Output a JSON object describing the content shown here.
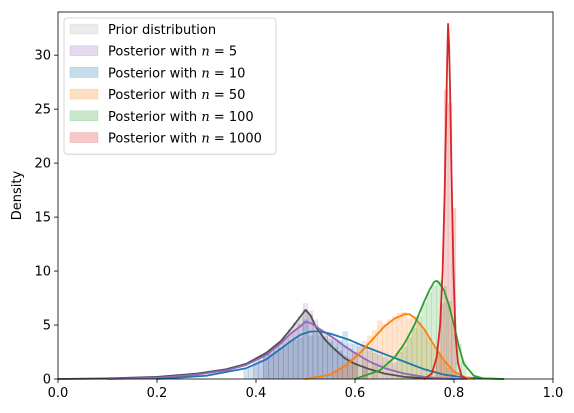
{
  "chart_data": {
    "type": "area",
    "title": "",
    "xlabel": "",
    "ylabel": "Density",
    "xlim": [
      0.0,
      1.0
    ],
    "ylim": [
      0,
      34
    ],
    "xticks": [
      0.0,
      0.2,
      0.4,
      0.6,
      0.8,
      1.0
    ],
    "xtick_labels": [
      "0.0",
      "0.2",
      "0.4",
      "0.6",
      "0.8",
      "1.0"
    ],
    "yticks": [
      0,
      5,
      10,
      15,
      20,
      25,
      30
    ],
    "ytick_labels": [
      "0",
      "5",
      "10",
      "15",
      "20",
      "25",
      "30"
    ],
    "grid": false,
    "legend_position": "top-left",
    "series": [
      {
        "name": "Prior distribution",
        "color": "#505050",
        "x": [
          0.0,
          0.1,
          0.2,
          0.28,
          0.34,
          0.38,
          0.42,
          0.45,
          0.47,
          0.49,
          0.5,
          0.51,
          0.52,
          0.54,
          0.56,
          0.58,
          0.6,
          0.63,
          0.66,
          0.7,
          0.75,
          0.8
        ],
        "values": [
          0.0,
          0.05,
          0.2,
          0.5,
          0.9,
          1.4,
          2.4,
          3.5,
          4.6,
          5.8,
          6.4,
          5.9,
          4.9,
          3.6,
          2.7,
          1.9,
          1.4,
          0.9,
          0.5,
          0.2,
          0.05,
          0.0
        ],
        "hist_x": [
          0.42,
          0.43,
          0.44,
          0.45,
          0.46,
          0.47,
          0.48,
          0.49,
          0.5,
          0.51,
          0.52,
          0.53,
          0.54,
          0.55,
          0.56,
          0.57,
          0.58,
          0.59,
          0.6,
          0.62
        ],
        "hist_values": [
          2.2,
          2.5,
          3.0,
          3.5,
          4.0,
          4.6,
          5.2,
          5.8,
          6.4,
          5.9,
          5.0,
          4.5,
          4.0,
          3.4,
          2.9,
          2.6,
          2.1,
          1.8,
          1.5,
          1.1
        ]
      },
      {
        "name": "Posterior with $n=5$",
        "color": "#9467bd",
        "x": [
          0.1,
          0.2,
          0.28,
          0.34,
          0.38,
          0.42,
          0.45,
          0.47,
          0.49,
          0.5,
          0.51,
          0.52,
          0.54,
          0.56,
          0.58,
          0.6,
          0.63,
          0.66,
          0.7,
          0.74,
          0.78,
          0.82
        ],
        "values": [
          0.0,
          0.1,
          0.4,
          0.8,
          1.3,
          2.2,
          3.3,
          4.2,
          4.9,
          5.3,
          5.2,
          4.9,
          4.3,
          3.7,
          3.0,
          2.4,
          1.6,
          1.0,
          0.5,
          0.2,
          0.05,
          0.0
        ],
        "hist_x": [
          0.4,
          0.41,
          0.42,
          0.43,
          0.44,
          0.45,
          0.46,
          0.47,
          0.48,
          0.49,
          0.5,
          0.51,
          0.52,
          0.53,
          0.54,
          0.55,
          0.56,
          0.57,
          0.58,
          0.59,
          0.6,
          0.62,
          0.64
        ],
        "hist_values": [
          1.8,
          2.0,
          2.3,
          2.6,
          3.0,
          3.3,
          3.7,
          4.1,
          4.5,
          5.1,
          7.0,
          6.3,
          5.5,
          4.5,
          4.2,
          4.0,
          3.7,
          3.4,
          3.1,
          2.8,
          2.5,
          1.8,
          1.4
        ]
      },
      {
        "name": "Posterior with $n=10$",
        "color": "#1f77b4",
        "x": [
          0.2,
          0.3,
          0.38,
          0.42,
          0.45,
          0.47,
          0.49,
          0.51,
          0.53,
          0.55,
          0.57,
          0.59,
          0.62,
          0.66,
          0.7,
          0.74,
          0.78,
          0.82,
          0.86,
          0.9
        ],
        "values": [
          0.0,
          0.3,
          1.0,
          1.8,
          2.8,
          3.5,
          4.1,
          4.4,
          4.4,
          4.2,
          3.9,
          3.6,
          3.0,
          2.3,
          1.6,
          0.9,
          0.4,
          0.15,
          0.05,
          0.0
        ],
        "hist_x": [
          0.38,
          0.39,
          0.4,
          0.41,
          0.42,
          0.43,
          0.44,
          0.45,
          0.46,
          0.47,
          0.48,
          0.49,
          0.5,
          0.51,
          0.52,
          0.53,
          0.54,
          0.55,
          0.56,
          0.57,
          0.58,
          0.59,
          0.6,
          0.61,
          0.62,
          0.63,
          0.64,
          0.65,
          0.66,
          0.67,
          0.68
        ],
        "hist_values": [
          1.0,
          1.2,
          1.4,
          1.7,
          2.0,
          2.3,
          2.6,
          2.9,
          3.1,
          3.4,
          3.6,
          3.8,
          5.5,
          4.0,
          4.2,
          4.0,
          3.8,
          3.7,
          3.6,
          3.6,
          4.4,
          3.3,
          3.2,
          3.0,
          2.8,
          2.6,
          2.4,
          2.2,
          2.0,
          1.8,
          1.5
        ]
      },
      {
        "name": "Posterior with $n=50$",
        "color": "#ff7f0e",
        "x": [
          0.5,
          0.55,
          0.58,
          0.61,
          0.64,
          0.66,
          0.68,
          0.7,
          0.71,
          0.72,
          0.74,
          0.76,
          0.78,
          0.8,
          0.82,
          0.84
        ],
        "values": [
          0.0,
          0.4,
          1.2,
          2.4,
          3.9,
          4.9,
          5.6,
          6.0,
          6.0,
          5.7,
          4.6,
          3.1,
          1.7,
          0.7,
          0.2,
          0.0
        ],
        "hist_x": [
          0.56,
          0.57,
          0.58,
          0.59,
          0.6,
          0.61,
          0.62,
          0.63,
          0.64,
          0.65,
          0.66,
          0.67,
          0.68,
          0.69,
          0.7,
          0.71,
          0.72,
          0.73,
          0.74,
          0.75,
          0.76,
          0.77,
          0.78,
          0.79,
          0.8
        ],
        "hist_values": [
          0.8,
          1.1,
          1.5,
          2.0,
          2.5,
          3.0,
          3.5,
          4.0,
          4.5,
          5.4,
          5.1,
          5.5,
          5.8,
          6.1,
          6.2,
          5.6,
          5.8,
          5.2,
          4.5,
          3.8,
          3.0,
          2.2,
          1.6,
          1.0,
          0.6
        ]
      },
      {
        "name": "Posterior with $n=100$",
        "color": "#2ca02c",
        "x": [
          0.6,
          0.65,
          0.68,
          0.7,
          0.72,
          0.73,
          0.74,
          0.75,
          0.76,
          0.765,
          0.77,
          0.78,
          0.79,
          0.8,
          0.81,
          0.82,
          0.84,
          0.86,
          0.9
        ],
        "values": [
          0.0,
          0.8,
          2.0,
          3.3,
          5.0,
          6.1,
          7.2,
          8.2,
          9.0,
          9.1,
          8.9,
          8.2,
          6.8,
          5.0,
          3.0,
          1.4,
          0.3,
          0.05,
          0.0
        ],
        "hist_x": [
          0.69,
          0.7,
          0.71,
          0.72,
          0.73,
          0.74,
          0.75,
          0.76,
          0.77,
          0.78,
          0.79,
          0.8,
          0.81,
          0.82
        ],
        "hist_values": [
          2.5,
          3.0,
          3.8,
          4.7,
          5.8,
          7.0,
          8.0,
          8.6,
          9.1,
          8.6,
          7.2,
          5.2,
          3.2,
          1.6
        ]
      },
      {
        "name": "Posterior with $n=1000$",
        "color": "#d62728",
        "x": [
          0.74,
          0.755,
          0.765,
          0.772,
          0.777,
          0.781,
          0.784,
          0.786,
          0.788,
          0.79,
          0.792,
          0.795,
          0.799,
          0.803,
          0.808,
          0.815,
          0.825
        ],
        "values": [
          0.0,
          0.5,
          2.0,
          5.0,
          10.0,
          17.0,
          24.0,
          29.0,
          32.9,
          31.0,
          27.0,
          19.0,
          10.0,
          4.0,
          1.5,
          0.3,
          0.0
        ],
        "hist_x": [
          0.768,
          0.776,
          0.784,
          0.792,
          0.8
        ],
        "hist_values": [
          2.5,
          7.0,
          26.8,
          25.5,
          15.8
        ]
      }
    ]
  }
}
